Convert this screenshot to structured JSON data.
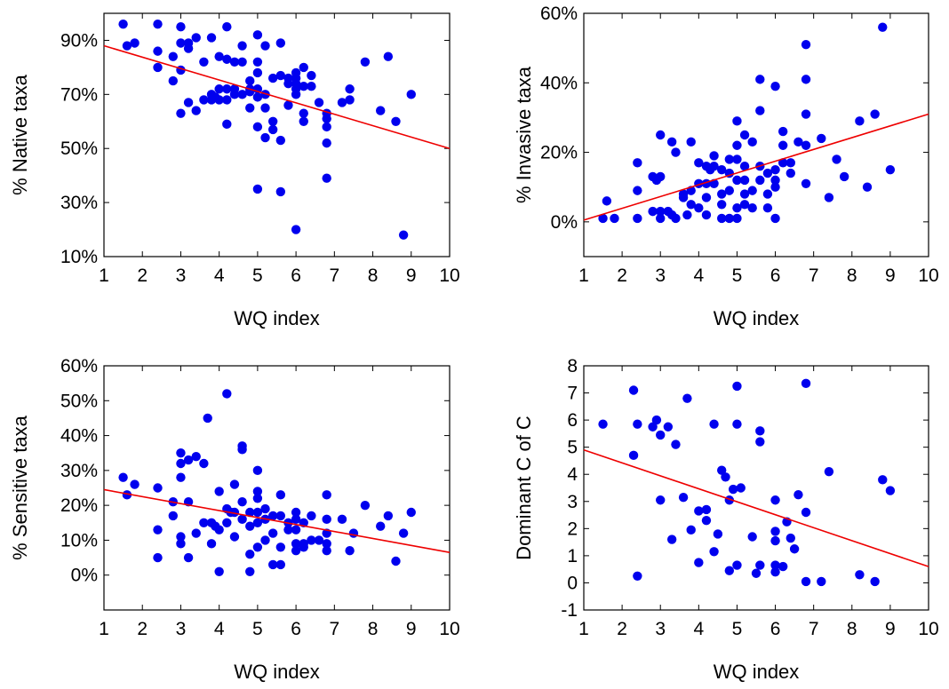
{
  "colors": {
    "points": "#0000ee",
    "trend": "#ee0000",
    "frame": "#000000"
  },
  "chart_data": [
    {
      "type": "scatter",
      "xlabel": "WQ index",
      "ylabel": "% Native taxa",
      "xlim": [
        1,
        10
      ],
      "ylim": [
        10,
        100
      ],
      "x_ticks": [
        "1",
        "2",
        "3",
        "4",
        "5",
        "6",
        "7",
        "8",
        "9",
        "10"
      ],
      "y_ticks": [
        "10%",
        "30%",
        "50%",
        "70%",
        "90%"
      ],
      "y_tick_values": [
        10,
        30,
        50,
        70,
        90
      ],
      "trendline": [
        [
          1,
          88
        ],
        [
          10,
          50
        ]
      ],
      "points": [
        [
          1.5,
          96
        ],
        [
          1.6,
          88
        ],
        [
          1.8,
          89
        ],
        [
          2.4,
          96
        ],
        [
          2.4,
          86
        ],
        [
          2.4,
          80
        ],
        [
          2.8,
          84
        ],
        [
          2.8,
          75
        ],
        [
          3.0,
          95
        ],
        [
          3.0,
          89
        ],
        [
          3.0,
          79
        ],
        [
          3.0,
          63
        ],
        [
          3.2,
          89
        ],
        [
          3.2,
          87
        ],
        [
          3.2,
          67
        ],
        [
          3.4,
          91
        ],
        [
          3.4,
          64
        ],
        [
          3.6,
          82
        ],
        [
          3.6,
          68
        ],
        [
          3.8,
          91
        ],
        [
          3.8,
          70
        ],
        [
          3.8,
          68
        ],
        [
          3.9,
          69
        ],
        [
          4.0,
          84
        ],
        [
          4.0,
          72
        ],
        [
          4.0,
          68
        ],
        [
          4.2,
          95
        ],
        [
          4.2,
          83
        ],
        [
          4.2,
          72
        ],
        [
          4.2,
          68
        ],
        [
          4.2,
          59
        ],
        [
          4.4,
          82
        ],
        [
          4.4,
          72
        ],
        [
          4.4,
          70
        ],
        [
          4.6,
          88
        ],
        [
          4.6,
          82
        ],
        [
          4.6,
          70
        ],
        [
          4.8,
          75
        ],
        [
          4.8,
          71
        ],
        [
          4.8,
          65
        ],
        [
          4.8,
          72
        ],
        [
          5.0,
          92
        ],
        [
          5.0,
          82
        ],
        [
          5.0,
          78
        ],
        [
          5.0,
          72
        ],
        [
          5.0,
          69
        ],
        [
          5.0,
          58
        ],
        [
          5.0,
          35
        ],
        [
          5.2,
          88
        ],
        [
          5.2,
          70
        ],
        [
          5.2,
          65
        ],
        [
          5.2,
          54
        ],
        [
          5.4,
          76
        ],
        [
          5.4,
          60
        ],
        [
          5.4,
          57
        ],
        [
          5.6,
          89
        ],
        [
          5.6,
          77
        ],
        [
          5.6,
          53
        ],
        [
          5.6,
          34
        ],
        [
          5.8,
          76
        ],
        [
          5.8,
          74
        ],
        [
          5.8,
          66
        ],
        [
          6.0,
          78
        ],
        [
          6.0,
          76
        ],
        [
          6.0,
          74
        ],
        [
          6.0,
          72
        ],
        [
          6.0,
          70
        ],
        [
          6.0,
          20
        ],
        [
          6.2,
          80
        ],
        [
          6.2,
          73
        ],
        [
          6.2,
          63
        ],
        [
          6.2,
          60
        ],
        [
          6.4,
          77
        ],
        [
          6.4,
          73
        ],
        [
          6.6,
          67
        ],
        [
          6.8,
          63
        ],
        [
          6.8,
          61
        ],
        [
          6.8,
          58
        ],
        [
          6.8,
          52
        ],
        [
          6.8,
          39
        ],
        [
          7.2,
          67
        ],
        [
          7.4,
          72
        ],
        [
          7.4,
          68
        ],
        [
          7.8,
          82
        ],
        [
          8.2,
          64
        ],
        [
          8.4,
          84
        ],
        [
          8.6,
          60
        ],
        [
          8.8,
          18
        ],
        [
          9.0,
          70
        ]
      ]
    },
    {
      "type": "scatter",
      "xlabel": "WQ index",
      "ylabel": "% Invasive taxa",
      "xlim": [
        1,
        10
      ],
      "ylim": [
        -10,
        60
      ],
      "x_ticks": [
        "1",
        "2",
        "3",
        "4",
        "5",
        "6",
        "7",
        "8",
        "9",
        "10"
      ],
      "y_ticks": [
        "0%",
        "20%",
        "40%",
        "60%"
      ],
      "y_tick_values": [
        0,
        20,
        40,
        60
      ],
      "trendline": [
        [
          1,
          0.5
        ],
        [
          10,
          31
        ]
      ],
      "points": [
        [
          1.5,
          1
        ],
        [
          1.6,
          6
        ],
        [
          1.8,
          1
        ],
        [
          2.4,
          17
        ],
        [
          2.4,
          9
        ],
        [
          2.4,
          1
        ],
        [
          2.8,
          13
        ],
        [
          2.8,
          3
        ],
        [
          2.9,
          12
        ],
        [
          3.0,
          25
        ],
        [
          3.0,
          13
        ],
        [
          3.0,
          3
        ],
        [
          3.0,
          1
        ],
        [
          3.2,
          3
        ],
        [
          3.3,
          23
        ],
        [
          3.3,
          2
        ],
        [
          3.4,
          20
        ],
        [
          3.4,
          1
        ],
        [
          3.6,
          8
        ],
        [
          3.6,
          7
        ],
        [
          3.7,
          2
        ],
        [
          3.8,
          23
        ],
        [
          3.8,
          9
        ],
        [
          3.8,
          5
        ],
        [
          4.0,
          17
        ],
        [
          4.0,
          11
        ],
        [
          4.0,
          4
        ],
        [
          4.2,
          16
        ],
        [
          4.2,
          11
        ],
        [
          4.2,
          7
        ],
        [
          4.2,
          2
        ],
        [
          4.3,
          15
        ],
        [
          4.4,
          19
        ],
        [
          4.4,
          16
        ],
        [
          4.4,
          11
        ],
        [
          4.6,
          15
        ],
        [
          4.6,
          8
        ],
        [
          4.6,
          5
        ],
        [
          4.6,
          1
        ],
        [
          4.8,
          18
        ],
        [
          4.8,
          14
        ],
        [
          4.8,
          9
        ],
        [
          4.8,
          1
        ],
        [
          5.0,
          29
        ],
        [
          5.0,
          22
        ],
        [
          5.0,
          18
        ],
        [
          5.0,
          12
        ],
        [
          5.0,
          4
        ],
        [
          5.0,
          1
        ],
        [
          5.2,
          25
        ],
        [
          5.2,
          16
        ],
        [
          5.2,
          12
        ],
        [
          5.2,
          8
        ],
        [
          5.2,
          5
        ],
        [
          5.4,
          23
        ],
        [
          5.4,
          9
        ],
        [
          5.4,
          4
        ],
        [
          5.6,
          41
        ],
        [
          5.6,
          32
        ],
        [
          5.6,
          16
        ],
        [
          5.6,
          12
        ],
        [
          5.8,
          14
        ],
        [
          5.8,
          8
        ],
        [
          5.8,
          4
        ],
        [
          6.0,
          39
        ],
        [
          6.0,
          15
        ],
        [
          6.0,
          12
        ],
        [
          6.0,
          10
        ],
        [
          6.0,
          1
        ],
        [
          6.2,
          26
        ],
        [
          6.2,
          22
        ],
        [
          6.2,
          17
        ],
        [
          6.4,
          17
        ],
        [
          6.4,
          14
        ],
        [
          6.6,
          23
        ],
        [
          6.8,
          51
        ],
        [
          6.8,
          41
        ],
        [
          6.8,
          31
        ],
        [
          6.8,
          22
        ],
        [
          6.8,
          11
        ],
        [
          7.2,
          24
        ],
        [
          7.4,
          7
        ],
        [
          7.6,
          18
        ],
        [
          7.8,
          13
        ],
        [
          8.2,
          29
        ],
        [
          8.4,
          10
        ],
        [
          8.6,
          31
        ],
        [
          8.8,
          56
        ],
        [
          9.0,
          15
        ]
      ]
    },
    {
      "type": "scatter",
      "xlabel": "WQ index",
      "ylabel": "% Sensitive taxa",
      "xlim": [
        1,
        10
      ],
      "ylim": [
        -10,
        60
      ],
      "x_ticks": [
        "1",
        "2",
        "3",
        "4",
        "5",
        "6",
        "7",
        "8",
        "9",
        "10"
      ],
      "y_ticks": [
        "0%",
        "10%",
        "20%",
        "30%",
        "40%",
        "50%",
        "60%"
      ],
      "y_tick_values": [
        0,
        10,
        20,
        30,
        40,
        50,
        60
      ],
      "trendline": [
        [
          1,
          24.5
        ],
        [
          10,
          6.5
        ]
      ],
      "points": [
        [
          1.5,
          28
        ],
        [
          1.6,
          23
        ],
        [
          1.8,
          26
        ],
        [
          2.4,
          25
        ],
        [
          2.4,
          13
        ],
        [
          2.4,
          5
        ],
        [
          2.8,
          21
        ],
        [
          2.8,
          17
        ],
        [
          3.0,
          35
        ],
        [
          3.0,
          32
        ],
        [
          3.0,
          28
        ],
        [
          3.0,
          11
        ],
        [
          3.0,
          9
        ],
        [
          3.2,
          33
        ],
        [
          3.2,
          21
        ],
        [
          3.2,
          5
        ],
        [
          3.4,
          34
        ],
        [
          3.4,
          12
        ],
        [
          3.6,
          32
        ],
        [
          3.6,
          15
        ],
        [
          3.7,
          45
        ],
        [
          3.8,
          15
        ],
        [
          3.8,
          9
        ],
        [
          3.9,
          14
        ],
        [
          4.0,
          24
        ],
        [
          4.0,
          13
        ],
        [
          4.0,
          1
        ],
        [
          4.2,
          52
        ],
        [
          4.2,
          19
        ],
        [
          4.2,
          15
        ],
        [
          4.3,
          18
        ],
        [
          4.4,
          26
        ],
        [
          4.4,
          18
        ],
        [
          4.4,
          11
        ],
        [
          4.6,
          37
        ],
        [
          4.6,
          36
        ],
        [
          4.6,
          21
        ],
        [
          4.6,
          16
        ],
        [
          4.8,
          18
        ],
        [
          4.8,
          14
        ],
        [
          4.8,
          6
        ],
        [
          4.8,
          1
        ],
        [
          5.0,
          30
        ],
        [
          5.0,
          24
        ],
        [
          5.0,
          22
        ],
        [
          5.0,
          18
        ],
        [
          5.0,
          15
        ],
        [
          5.0,
          8
        ],
        [
          5.2,
          19
        ],
        [
          5.2,
          16
        ],
        [
          5.2,
          10
        ],
        [
          5.4,
          17
        ],
        [
          5.4,
          12
        ],
        [
          5.4,
          3
        ],
        [
          5.6,
          23
        ],
        [
          5.6,
          17
        ],
        [
          5.6,
          8
        ],
        [
          5.6,
          3
        ],
        [
          5.8,
          15
        ],
        [
          5.8,
          13
        ],
        [
          6.0,
          18
        ],
        [
          6.0,
          16
        ],
        [
          6.0,
          13
        ],
        [
          6.0,
          9
        ],
        [
          6.0,
          7
        ],
        [
          6.2,
          15
        ],
        [
          6.2,
          9
        ],
        [
          6.2,
          8
        ],
        [
          6.4,
          17
        ],
        [
          6.4,
          10
        ],
        [
          6.6,
          10
        ],
        [
          6.8,
          23
        ],
        [
          6.8,
          16
        ],
        [
          6.8,
          12
        ],
        [
          6.8,
          9
        ],
        [
          6.8,
          7
        ],
        [
          7.2,
          16
        ],
        [
          7.4,
          7
        ],
        [
          7.5,
          12
        ],
        [
          7.8,
          20
        ],
        [
          8.2,
          14
        ],
        [
          8.4,
          17
        ],
        [
          8.6,
          4
        ],
        [
          8.8,
          12
        ],
        [
          9.0,
          18
        ]
      ]
    },
    {
      "type": "scatter",
      "xlabel": "WQ index",
      "ylabel": "Dominant C of C",
      "xlim": [
        1,
        10
      ],
      "ylim": [
        -1,
        8
      ],
      "x_ticks": [
        "1",
        "2",
        "3",
        "4",
        "5",
        "6",
        "7",
        "8",
        "9",
        "10"
      ],
      "y_ticks": [
        "-1",
        "0",
        "1",
        "2",
        "3",
        "4",
        "5",
        "6",
        "7",
        "8"
      ],
      "y_tick_values": [
        -1,
        0,
        1,
        2,
        3,
        4,
        5,
        6,
        7,
        8
      ],
      "trendline": [
        [
          1,
          4.9
        ],
        [
          10,
          0.6
        ]
      ],
      "points": [
        [
          1.5,
          5.85
        ],
        [
          2.3,
          7.1
        ],
        [
          2.3,
          4.7
        ],
        [
          2.4,
          5.85
        ],
        [
          2.4,
          0.25
        ],
        [
          2.8,
          5.75
        ],
        [
          2.9,
          6.0
        ],
        [
          3.0,
          5.45
        ],
        [
          3.0,
          3.05
        ],
        [
          3.2,
          5.75
        ],
        [
          3.3,
          1.6
        ],
        [
          3.4,
          5.1
        ],
        [
          3.6,
          3.15
        ],
        [
          3.7,
          6.8
        ],
        [
          3.8,
          1.95
        ],
        [
          4.0,
          2.65
        ],
        [
          4.0,
          0.75
        ],
        [
          4.2,
          2.7
        ],
        [
          4.2,
          2.3
        ],
        [
          4.4,
          5.85
        ],
        [
          4.4,
          1.15
        ],
        [
          4.5,
          1.8
        ],
        [
          4.6,
          4.15
        ],
        [
          4.7,
          3.9
        ],
        [
          4.8,
          3.05
        ],
        [
          4.8,
          0.45
        ],
        [
          4.9,
          3.45
        ],
        [
          5.0,
          7.25
        ],
        [
          5.0,
          5.85
        ],
        [
          5.0,
          0.65
        ],
        [
          5.1,
          3.5
        ],
        [
          5.4,
          1.7
        ],
        [
          5.5,
          0.35
        ],
        [
          5.6,
          5.6
        ],
        [
          5.6,
          5.2
        ],
        [
          5.6,
          0.65
        ],
        [
          6.0,
          3.05
        ],
        [
          6.0,
          1.9
        ],
        [
          6.0,
          1.55
        ],
        [
          6.0,
          0.65
        ],
        [
          6.0,
          0.4
        ],
        [
          6.2,
          0.6
        ],
        [
          6.3,
          2.25
        ],
        [
          6.4,
          1.65
        ],
        [
          6.5,
          1.25
        ],
        [
          6.6,
          3.25
        ],
        [
          6.8,
          7.35
        ],
        [
          6.8,
          2.6
        ],
        [
          6.8,
          0.05
        ],
        [
          7.2,
          0.05
        ],
        [
          7.4,
          4.1
        ],
        [
          8.2,
          0.3
        ],
        [
          8.6,
          0.05
        ],
        [
          8.8,
          3.8
        ],
        [
          9.0,
          3.4
        ]
      ]
    }
  ]
}
